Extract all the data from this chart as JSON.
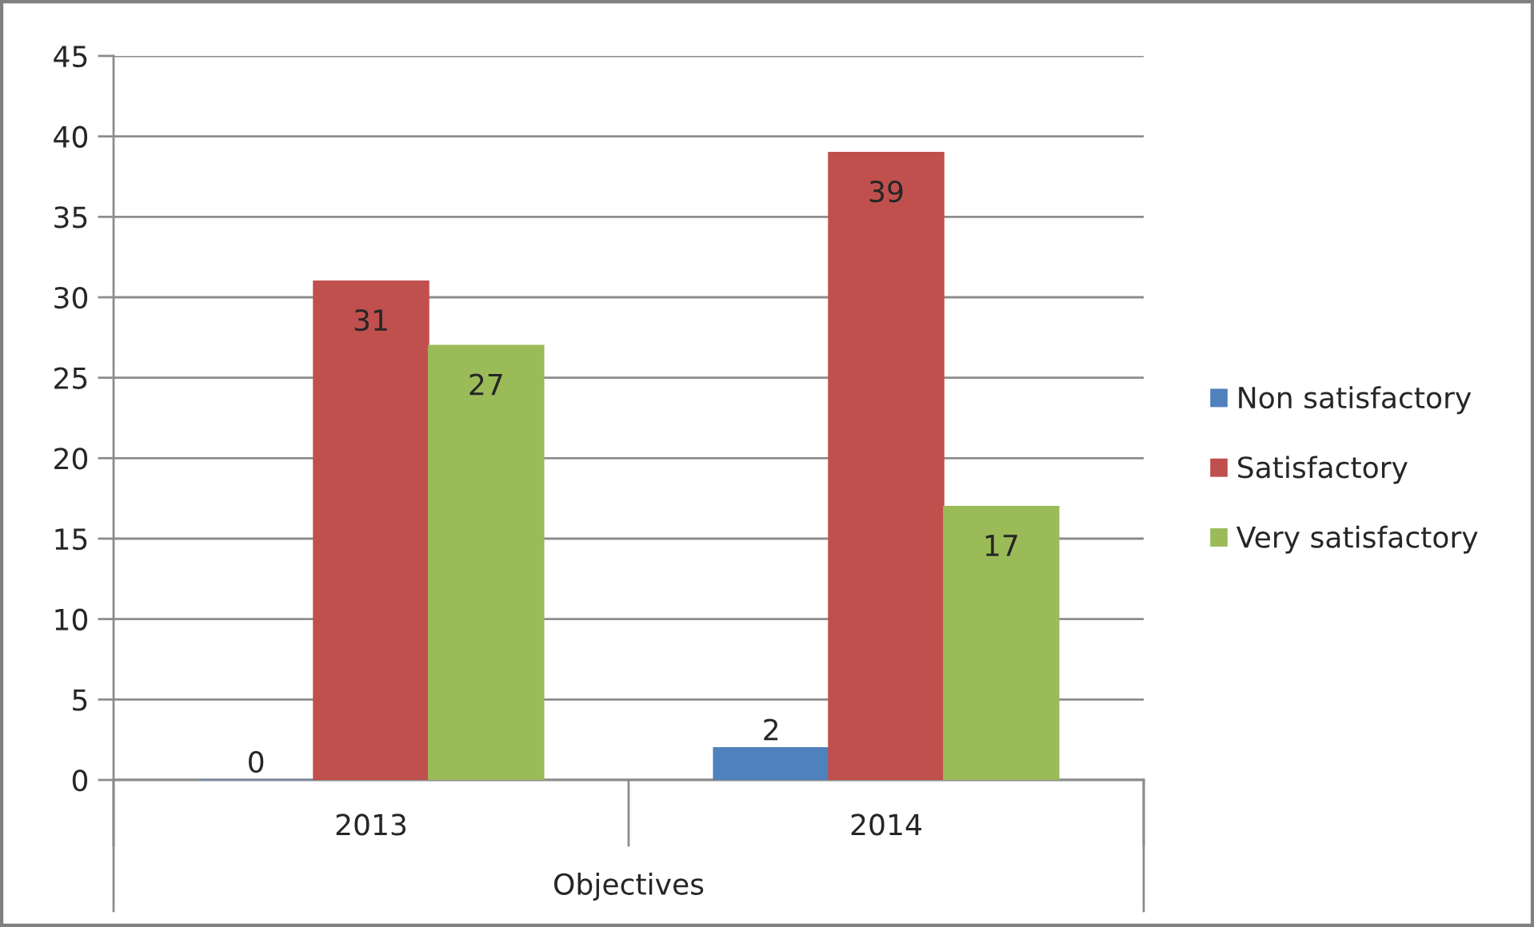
{
  "chart_data": {
    "type": "bar",
    "categories": [
      "2013",
      "2014"
    ],
    "xlabel": "Objectives",
    "series": [
      {
        "name": "Non satisfactory",
        "color": "#4f81bd",
        "values": [
          0,
          2
        ]
      },
      {
        "name": "Satisfactory",
        "color": "#c0504d",
        "values": [
          31,
          39
        ]
      },
      {
        "name": "Very satisfactory",
        "color": "#9bbb59",
        "values": [
          27,
          17
        ]
      }
    ],
    "ylim": [
      0,
      45
    ],
    "yticks": [
      0,
      5,
      10,
      15,
      20,
      25,
      30,
      35,
      40,
      45
    ],
    "grid": "y",
    "legend": "right",
    "data_labels": true
  }
}
